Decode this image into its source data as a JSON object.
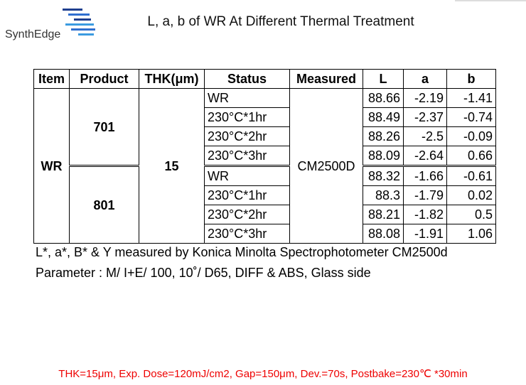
{
  "header": {
    "logo": "SynthEdge",
    "title": "L, a, b of WR At Different Thermal Treatment"
  },
  "table": {
    "columns": [
      "Item",
      "Product",
      "THK(μm)",
      "Status",
      "Measured",
      "L",
      "a",
      "b"
    ],
    "item": "WR",
    "products": [
      "701",
      "801"
    ],
    "thk": "15",
    "measured": "CM2500D",
    "rows": [
      [
        "WR",
        "88.66",
        "-2.19",
        "-1.41"
      ],
      [
        "230°C*1hr",
        "88.49",
        "-2.37",
        "-0.74"
      ],
      [
        "230°C*2hr",
        "88.26",
        "-2.5",
        "-0.09"
      ],
      [
        "230°C*3hr",
        "88.09",
        "-2.64",
        "0.66"
      ],
      [
        "WR",
        "88.32",
        "-1.66",
        "-0.61"
      ],
      [
        "230°C*1hr",
        "88.3",
        "-1.79",
        "0.02"
      ],
      [
        "230°C*2hr",
        "88.21",
        "-1.82",
        "0.5"
      ],
      [
        "230°C*3hr",
        "88.08",
        "-1.91",
        "1.06"
      ]
    ]
  },
  "notes": [
    "L*, a*, B* & Y measured by Konica Minolta Spectrophotometer CM2500d",
    "Parameter : M/ I+E/ 100, 10˚/ D65, DIFF & ABS, Glass side"
  ],
  "footer": "THK=15μm, Exp. Dose=120mJ/cm2, Gap=150μm, Dev.=70s, Postbake=230℃ *30min"
}
